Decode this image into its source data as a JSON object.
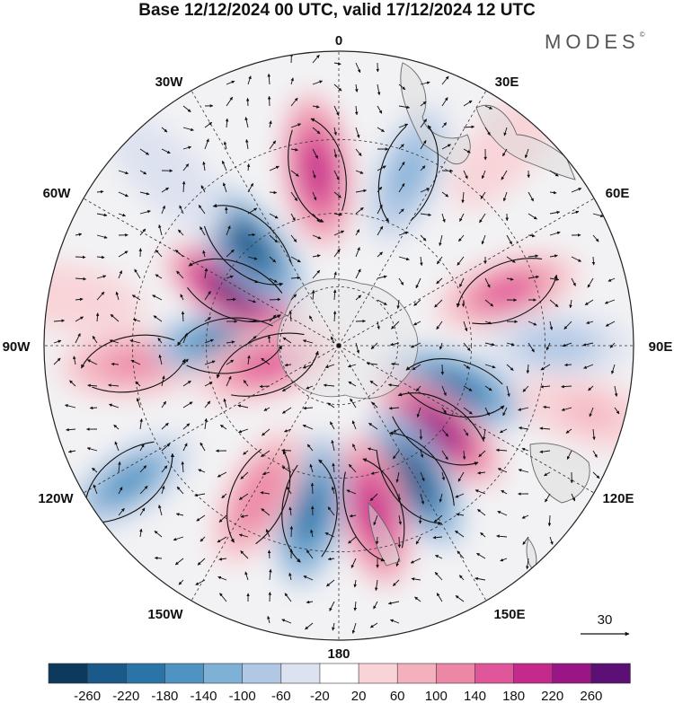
{
  "title": "Base 12/12/2024 00 UTC, valid 17/12/2024 12 UTC",
  "brand": "MODES",
  "brand_mark": "©",
  "longitude_labels": [
    "0",
    "30E",
    "60E",
    "90E",
    "120E",
    "150E",
    "180",
    "150W",
    "120W",
    "90W",
    "60W",
    "30W"
  ],
  "vector_reference": {
    "value": "30",
    "icon": "reference-arrow-icon"
  },
  "colorbar": {
    "colors": [
      "#0d3a5c",
      "#1a5a8a",
      "#2b74a8",
      "#4f93c2",
      "#7fb0d6",
      "#b0c8e4",
      "#dde2f0",
      "#ffffff",
      "#f8d4d8",
      "#f3b0bd",
      "#ec88a6",
      "#e0569a",
      "#c42a8c",
      "#9a1586",
      "#5c0f74"
    ],
    "tick_labels": [
      "-260",
      "-220",
      "-180",
      "-140",
      "-100",
      "-60",
      "-20",
      "20",
      "60",
      "100",
      "140",
      "180",
      "220",
      "260"
    ]
  },
  "anomaly_fields": [
    {
      "lon": 72,
      "r": 0.6,
      "v": 160
    },
    {
      "lon": 90,
      "r": 0.74,
      "v": -80
    },
    {
      "lon": 110,
      "r": 0.42,
      "v": -190
    },
    {
      "lon": 130,
      "r": 0.44,
      "v": 230
    },
    {
      "lon": 150,
      "r": 0.52,
      "v": -240
    },
    {
      "lon": 168,
      "r": 0.57,
      "v": 200
    },
    {
      "lon": -170,
      "r": 0.57,
      "v": -210
    },
    {
      "lon": -152,
      "r": 0.58,
      "v": 130
    },
    {
      "lon": -123,
      "r": 0.85,
      "v": -150
    },
    {
      "lon": -95,
      "r": 0.7,
      "v": 120
    },
    {
      "lon": -90,
      "r": 0.37,
      "v": -200
    },
    {
      "lon": -62,
      "r": 0.4,
      "v": 260
    },
    {
      "lon": -42,
      "r": 0.46,
      "v": -240
    },
    {
      "lon": -7,
      "r": 0.6,
      "v": 200
    },
    {
      "lon": 22,
      "r": 0.63,
      "v": -120
    },
    {
      "lon": -45,
      "r": 0.82,
      "v": -60
    },
    {
      "lon": 105,
      "r": 0.88,
      "v": 60
    },
    {
      "lon": 40,
      "r": 0.88,
      "v": 40
    },
    {
      "lon": -80,
      "r": 0.93,
      "v": 40
    },
    {
      "lon": -105,
      "r": 0.25,
      "v": 150
    }
  ]
}
